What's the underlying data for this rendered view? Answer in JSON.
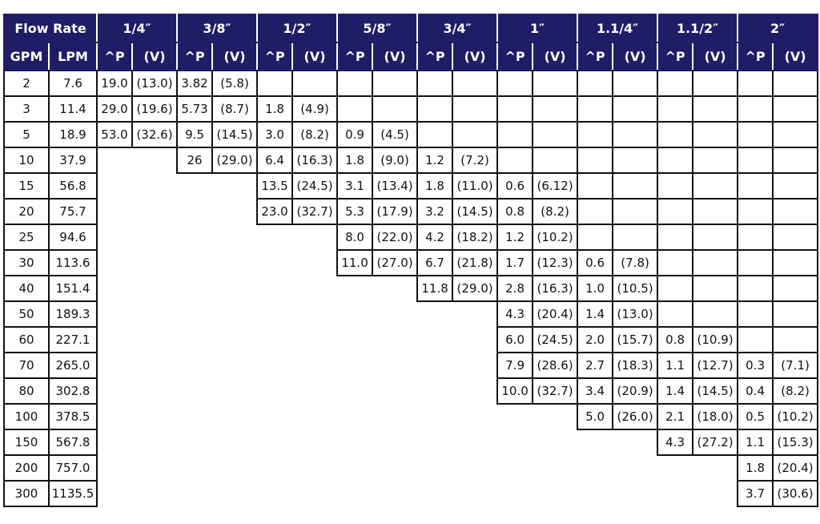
{
  "header": {
    "flow_rate": "Flow Rate",
    "gpm": "GPM",
    "lpm": "LPM",
    "dp_label": "^P",
    "v_label": "(V)",
    "sizes": [
      "1/4″",
      "3/8″",
      "1/2″",
      "5/8″",
      "3/4″",
      "1″",
      "1.1/4″",
      "1.1/2″",
      "2″"
    ]
  },
  "rows": [
    {
      "gpm": "2",
      "lpm": "7.6",
      "cells": [
        [
          "19.0",
          "(13.0)"
        ],
        [
          "3.82",
          "(5.8)"
        ],
        [
          "",
          ""
        ],
        [
          "",
          ""
        ],
        [
          "",
          ""
        ],
        [
          "",
          ""
        ],
        [
          "",
          ""
        ],
        [
          "",
          ""
        ],
        [
          "",
          ""
        ]
      ],
      "bordered": [
        0,
        1,
        2,
        3,
        4,
        5,
        6,
        7,
        8
      ]
    },
    {
      "gpm": "3",
      "lpm": "11.4",
      "cells": [
        [
          "29.0",
          "(19.6)"
        ],
        [
          "5.73",
          "(8.7)"
        ],
        [
          "1.8",
          "(4.9)"
        ],
        [
          "",
          ""
        ],
        [
          "",
          ""
        ],
        [
          "",
          ""
        ],
        [
          "",
          ""
        ],
        [
          "",
          ""
        ],
        [
          "",
          ""
        ]
      ],
      "bordered": [
        0,
        1,
        2,
        3,
        4,
        5,
        6,
        7,
        8
      ]
    },
    {
      "gpm": "5",
      "lpm": "18.9",
      "cells": [
        [
          "53.0",
          "(32.6)"
        ],
        [
          "9.5",
          "(14.5)"
        ],
        [
          "3.0",
          "(8.2)"
        ],
        [
          "0.9",
          "(4.5)"
        ],
        [
          "",
          ""
        ],
        [
          "",
          ""
        ],
        [
          "",
          ""
        ],
        [
          "",
          ""
        ],
        [
          "",
          ""
        ]
      ],
      "bordered": [
        0,
        1,
        2,
        3,
        4,
        5,
        6,
        7,
        8
      ]
    },
    {
      "gpm": "10",
      "lpm": "37.9",
      "cells": [
        [
          "",
          ""
        ],
        [
          "26",
          "(29.0)"
        ],
        [
          "6.4",
          "(16.3)"
        ],
        [
          "1.8",
          "(9.0)"
        ],
        [
          "1.2",
          "(7.2)"
        ],
        [
          "",
          ""
        ],
        [
          "",
          ""
        ],
        [
          "",
          ""
        ],
        [
          "",
          ""
        ]
      ],
      "bordered": [
        1,
        2,
        3,
        4,
        5,
        6,
        7,
        8
      ]
    },
    {
      "gpm": "15",
      "lpm": "56.8",
      "cells": [
        [
          "",
          ""
        ],
        [
          "",
          ""
        ],
        [
          "13.5",
          "(24.5)"
        ],
        [
          "3.1",
          "(13.4)"
        ],
        [
          "1.8",
          "(11.0)"
        ],
        [
          "0.6",
          "(6.12)"
        ],
        [
          "",
          ""
        ],
        [
          "",
          ""
        ],
        [
          "",
          ""
        ]
      ],
      "bordered": [
        2,
        3,
        4,
        5,
        6,
        7,
        8
      ]
    },
    {
      "gpm": "20",
      "lpm": "75.7",
      "cells": [
        [
          "",
          ""
        ],
        [
          "",
          ""
        ],
        [
          "23.0",
          "(32.7)"
        ],
        [
          "5.3",
          "(17.9)"
        ],
        [
          "3.2",
          "(14.5)"
        ],
        [
          "0.8",
          "(8.2)"
        ],
        [
          "",
          ""
        ],
        [
          "",
          ""
        ],
        [
          "",
          ""
        ]
      ],
      "bordered": [
        2,
        3,
        4,
        5,
        6,
        7,
        8
      ]
    },
    {
      "gpm": "25",
      "lpm": "94.6",
      "cells": [
        [
          "",
          ""
        ],
        [
          "",
          ""
        ],
        [
          "",
          ""
        ],
        [
          "8.0",
          "(22.0)"
        ],
        [
          "4.2",
          "(18.2)"
        ],
        [
          "1.2",
          "(10.2)"
        ],
        [
          "",
          ""
        ],
        [
          "",
          ""
        ],
        [
          "",
          ""
        ]
      ],
      "bordered": [
        3,
        4,
        5,
        6,
        7,
        8
      ]
    },
    {
      "gpm": "30",
      "lpm": "113.6",
      "cells": [
        [
          "",
          ""
        ],
        [
          "",
          ""
        ],
        [
          "",
          ""
        ],
        [
          "11.0",
          "(27.0)"
        ],
        [
          "6.7",
          "(21.8)"
        ],
        [
          "1.7",
          "(12.3)"
        ],
        [
          "0.6",
          "(7.8)"
        ],
        [
          "",
          ""
        ],
        [
          "",
          ""
        ]
      ],
      "bordered": [
        3,
        4,
        5,
        6,
        7,
        8
      ]
    },
    {
      "gpm": "40",
      "lpm": "151.4",
      "cells": [
        [
          "",
          ""
        ],
        [
          "",
          ""
        ],
        [
          "",
          ""
        ],
        [
          "",
          ""
        ],
        [
          "11.8",
          "(29.0)"
        ],
        [
          "2.8",
          "(16.3)"
        ],
        [
          "1.0",
          "(10.5)"
        ],
        [
          "",
          ""
        ],
        [
          "",
          ""
        ]
      ],
      "bordered": [
        4,
        5,
        6,
        7,
        8
      ]
    },
    {
      "gpm": "50",
      "lpm": "189.3",
      "cells": [
        [
          "",
          ""
        ],
        [
          "",
          ""
        ],
        [
          "",
          ""
        ],
        [
          "",
          ""
        ],
        [
          "",
          ""
        ],
        [
          "4.3",
          "(20.4)"
        ],
        [
          "1.4",
          "(13.0)"
        ],
        [
          "",
          ""
        ],
        [
          "",
          ""
        ]
      ],
      "bordered": [
        5,
        6,
        7,
        8
      ]
    },
    {
      "gpm": "60",
      "lpm": "227.1",
      "cells": [
        [
          "",
          ""
        ],
        [
          "",
          ""
        ],
        [
          "",
          ""
        ],
        [
          "",
          ""
        ],
        [
          "",
          ""
        ],
        [
          "6.0",
          "(24.5)"
        ],
        [
          "2.0",
          "(15.7)"
        ],
        [
          "0.8",
          "(10.9)"
        ],
        [
          "",
          ""
        ]
      ],
      "bordered": [
        5,
        6,
        7,
        8
      ]
    },
    {
      "gpm": "70",
      "lpm": "265.0",
      "cells": [
        [
          "",
          ""
        ],
        [
          "",
          ""
        ],
        [
          "",
          ""
        ],
        [
          "",
          ""
        ],
        [
          "",
          ""
        ],
        [
          "7.9",
          "(28.6)"
        ],
        [
          "2.7",
          "(18.3)"
        ],
        [
          "1.1",
          "(12.7)"
        ],
        [
          "0.3",
          "(7.1)"
        ]
      ],
      "bordered": [
        5,
        6,
        7,
        8
      ]
    },
    {
      "gpm": "80",
      "lpm": "302.8",
      "cells": [
        [
          "",
          ""
        ],
        [
          "",
          ""
        ],
        [
          "",
          ""
        ],
        [
          "",
          ""
        ],
        [
          "",
          ""
        ],
        [
          "10.0",
          "(32.7)"
        ],
        [
          "3.4",
          "(20.9)"
        ],
        [
          "1.4",
          "(14.5)"
        ],
        [
          "0.4",
          "(8.2)"
        ]
      ],
      "bordered": [
        5,
        6,
        7,
        8
      ]
    },
    {
      "gpm": "100",
      "lpm": "378.5",
      "cells": [
        [
          "",
          ""
        ],
        [
          "",
          ""
        ],
        [
          "",
          ""
        ],
        [
          "",
          ""
        ],
        [
          "",
          ""
        ],
        [
          "",
          ""
        ],
        [
          "5.0",
          "(26.0)"
        ],
        [
          "2.1",
          "(18.0)"
        ],
        [
          "0.5",
          "(10.2)"
        ]
      ],
      "bordered": [
        6,
        7,
        8
      ]
    },
    {
      "gpm": "150",
      "lpm": "567.8",
      "cells": [
        [
          "",
          ""
        ],
        [
          "",
          ""
        ],
        [
          "",
          ""
        ],
        [
          "",
          ""
        ],
        [
          "",
          ""
        ],
        [
          "",
          ""
        ],
        [
          "",
          ""
        ],
        [
          "4.3",
          "(27.2)"
        ],
        [
          "1.1",
          "(15.3)"
        ]
      ],
      "bordered": [
        7,
        8
      ]
    },
    {
      "gpm": "200",
      "lpm": "757.0",
      "cells": [
        [
          "",
          ""
        ],
        [
          "",
          ""
        ],
        [
          "",
          ""
        ],
        [
          "",
          ""
        ],
        [
          "",
          ""
        ],
        [
          "",
          ""
        ],
        [
          "",
          ""
        ],
        [
          "",
          ""
        ],
        [
          "1.8",
          "(20.4)"
        ]
      ],
      "bordered": [
        8
      ]
    },
    {
      "gpm": "300",
      "lpm": "1135.5",
      "cells": [
        [
          "",
          ""
        ],
        [
          "",
          ""
        ],
        [
          "",
          ""
        ],
        [
          "",
          ""
        ],
        [
          "",
          ""
        ],
        [
          "",
          ""
        ],
        [
          "",
          ""
        ],
        [
          "",
          ""
        ],
        [
          "3.7",
          "(30.6)"
        ]
      ],
      "bordered": [
        8
      ]
    }
  ]
}
